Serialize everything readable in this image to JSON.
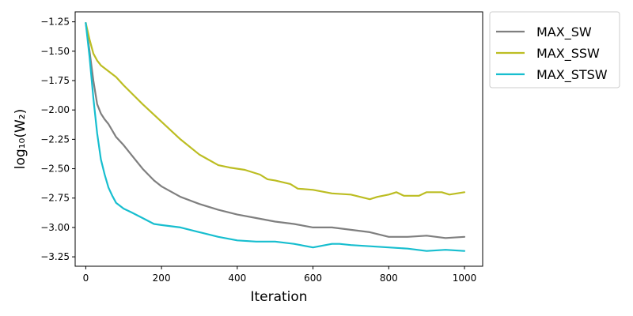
{
  "chart_data": {
    "type": "line",
    "xlabel": "Iteration",
    "ylabel": "log₁₀(W₂)",
    "xlim": [
      -28,
      1048
    ],
    "ylim": [
      -3.33,
      -1.165
    ],
    "xticks": [
      0,
      200,
      400,
      600,
      800,
      1000
    ],
    "xtick_labels": [
      "0",
      "200",
      "400",
      "600",
      "800",
      "1000"
    ],
    "yticks": [
      -1.25,
      -1.5,
      -1.75,
      -2.0,
      -2.25,
      -2.5,
      -2.75,
      -3.0,
      -3.25
    ],
    "ytick_labels": [
      "−1.25",
      "−1.50",
      "−1.75",
      "−2.00",
      "−2.25",
      "−2.50",
      "−2.75",
      "−3.00",
      "−3.25"
    ],
    "grid": false,
    "legend_position": "outside-right",
    "series": [
      {
        "name": "MAX_SW",
        "color": "#7f7f7f",
        "x": [
          0,
          10,
          20,
          30,
          40,
          50,
          60,
          80,
          100,
          120,
          150,
          180,
          200,
          250,
          300,
          350,
          400,
          450,
          500,
          550,
          600,
          650,
          700,
          750,
          800,
          850,
          900,
          950,
          1000
        ],
        "y": [
          -1.26,
          -1.5,
          -1.75,
          -1.95,
          -2.03,
          -2.08,
          -2.12,
          -2.23,
          -2.3,
          -2.38,
          -2.5,
          -2.6,
          -2.65,
          -2.74,
          -2.8,
          -2.85,
          -2.89,
          -2.92,
          -2.95,
          -2.97,
          -3.0,
          -3.0,
          -3.02,
          -3.04,
          -3.08,
          -3.08,
          -3.07,
          -3.09,
          -3.08
        ]
      },
      {
        "name": "MAX_SSW",
        "color": "#bcbd22",
        "x": [
          0,
          10,
          20,
          30,
          40,
          60,
          80,
          100,
          150,
          200,
          250,
          300,
          350,
          380,
          420,
          440,
          460,
          480,
          500,
          540,
          560,
          600,
          650,
          700,
          750,
          770,
          800,
          820,
          840,
          880,
          900,
          940,
          960,
          1000
        ],
        "y": [
          -1.26,
          -1.4,
          -1.52,
          -1.58,
          -1.62,
          -1.67,
          -1.72,
          -1.79,
          -1.95,
          -2.1,
          -2.25,
          -2.38,
          -2.47,
          -2.49,
          -2.51,
          -2.53,
          -2.55,
          -2.59,
          -2.6,
          -2.63,
          -2.67,
          -2.68,
          -2.71,
          -2.72,
          -2.76,
          -2.74,
          -2.72,
          -2.7,
          -2.73,
          -2.73,
          -2.7,
          -2.7,
          -2.72,
          -2.7
        ]
      },
      {
        "name": "MAX_STSW",
        "color": "#17becf",
        "x": [
          0,
          10,
          20,
          30,
          40,
          50,
          60,
          70,
          80,
          100,
          120,
          150,
          180,
          200,
          250,
          300,
          350,
          400,
          450,
          500,
          550,
          600,
          650,
          670,
          700,
          750,
          800,
          850,
          900,
          950,
          1000
        ],
        "y": [
          -1.26,
          -1.55,
          -1.9,
          -2.2,
          -2.42,
          -2.55,
          -2.66,
          -2.73,
          -2.79,
          -2.84,
          -2.87,
          -2.92,
          -2.97,
          -2.98,
          -3.0,
          -3.04,
          -3.08,
          -3.11,
          -3.12,
          -3.12,
          -3.14,
          -3.17,
          -3.14,
          -3.14,
          -3.15,
          -3.16,
          -3.17,
          -3.18,
          -3.2,
          -3.19,
          -3.2
        ]
      }
    ]
  }
}
